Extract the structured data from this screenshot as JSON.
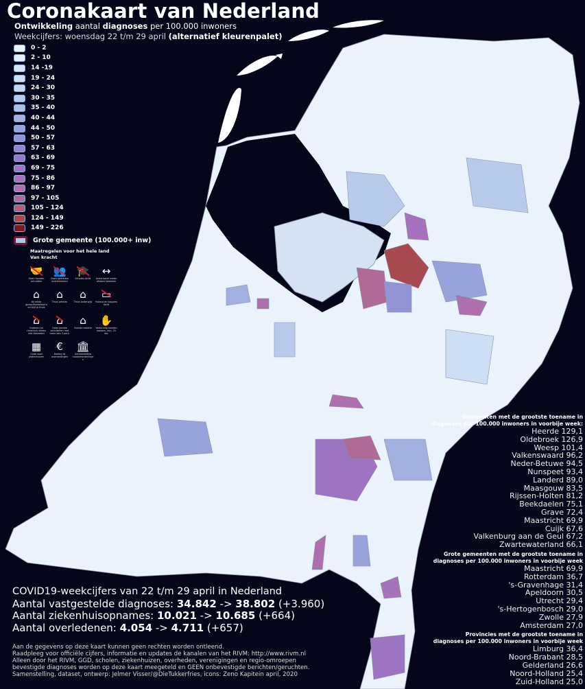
{
  "header": {
    "title": "Coronakaart van Nederland",
    "subtitle_bold1": "Ontwikkeling",
    "subtitle_mid": " aantal ",
    "subtitle_bold2": "diagnoses",
    "subtitle_end": " per 100.000 inwoners",
    "week_text": "Weekcijfers: woensdag 22 t/m 29 april ",
    "palette_note": "(alternatief kleurenpalet)"
  },
  "legend": {
    "items": [
      {
        "label": "0 - 2",
        "color": "#eaf4fc"
      },
      {
        "label": "2 - 10",
        "color": "#e0eefa"
      },
      {
        "label": "14 -19",
        "color": "#d6e6f6"
      },
      {
        "label": "19 - 24",
        "color": "#cddff4"
      },
      {
        "label": "24 - 30",
        "color": "#c4d6f0"
      },
      {
        "label": "30 - 35",
        "color": "#b9cbec"
      },
      {
        "label": "35 - 40",
        "color": "#aebfe6"
      },
      {
        "label": "40 - 44",
        "color": "#a2b0e0"
      },
      {
        "label": "44 - 50",
        "color": "#98a3dc"
      },
      {
        "label": "50 - 57",
        "color": "#9295d4"
      },
      {
        "label": "57 - 63",
        "color": "#8f88cc"
      },
      {
        "label": "63 - 69",
        "color": "#927cc6"
      },
      {
        "label": "69 - 75",
        "color": "#9c74c2"
      },
      {
        "label": "75 - 86",
        "color": "#a672bc"
      },
      {
        "label": "86 - 97",
        "color": "#ae6fae"
      },
      {
        "label": "97 - 105",
        "color": "#b06a98"
      },
      {
        "label": "105 - 124",
        "color": "#b06070"
      },
      {
        "label": "124 - 149",
        "color": "#a84850"
      },
      {
        "label": "149 - 226",
        "color": "#7a1a24"
      }
    ],
    "big_city_label": "Grote gemeente (100.000+ inw)"
  },
  "measures": {
    "title": "Maatregelen voor het hele land",
    "subtitle": "Van kracht",
    "items": [
      {
        "label": "Geen handen schudden",
        "icon": "handshake-icon",
        "glyph": "🤝",
        "crossed": true
      },
      {
        "label": "Geen openbare evenementen",
        "icon": "crowd-icon",
        "glyph": "👥",
        "crossed": true
      },
      {
        "label": "Scholen dicht",
        "icon": "graduation-cap-icon",
        "glyph": "🎓",
        "crossed": true
      },
      {
        "label": "Anderhalve meter afstand bewaren",
        "icon": "distance-icon",
        "glyph": "↔",
        "crossed": false
      },
      {
        "label": "Bij milde gezondheidsklachten blijf je thuis",
        "icon": "sick-home-icon",
        "glyph": "⌂",
        "crossed": false
      },
      {
        "label": "Thuis werken",
        "icon": "work-home-icon",
        "glyph": "⌂",
        "crossed": false
      },
      {
        "label": "Thuis onderwijs",
        "icon": "study-home-icon",
        "glyph": "⌂",
        "crossed": false
      },
      {
        "label": "Horeca en kappers dicht",
        "icon": "shop-icon",
        "glyph": "▭",
        "crossed": true
      },
      {
        "label": "Ouderen en chronisch zieken niet bezoeken",
        "icon": "elderly-icon",
        "glyph": "⌂",
        "crossed": true
      },
      {
        "label": "Geen sociale activiteiten met meer dan 3 pers.",
        "icon": "social-icon",
        "glyph": "⌂",
        "crossed": true
      },
      {
        "label": "Sociale isolatie",
        "icon": "isolation-icon",
        "glyph": "⌂",
        "crossed": false
      },
      {
        "label": "Veelvuldig handen wassen, min. 20 sec",
        "icon": "handwash-icon",
        "glyph": "✋",
        "crossed": false
      },
      {
        "label": "Code rood ziekenhuizen",
        "icon": "hospital-icon",
        "glyph": "▦",
        "crossed": false
      },
      {
        "label": "Boetes bij overtredingen",
        "icon": "fine-icon",
        "glyph": "€",
        "crossed": false
      },
      {
        "label": "Gemeentelijke noodverordeningen",
        "icon": "town-hall-icon",
        "glyph": "🏛",
        "crossed": false
      }
    ]
  },
  "stats": {
    "heading": "COVID19-weekcijfers van 22 t/m 29 april in Nederland",
    "rows": [
      {
        "label": "Aantal vastgestelde diagnoses: ",
        "from": "34.842",
        "arrow": " -> ",
        "to": "38.802",
        "delta": " (+3.960)"
      },
      {
        "label": "Aantal ziekenhuisopnames: ",
        "from": "10.021",
        "arrow": " -> ",
        "to": "10.685",
        "delta": " (+664)"
      },
      {
        "label": "Aantal overledenen: ",
        "from": "4.054",
        "arrow": " -> ",
        "to": "4.711",
        "delta": " (+657)"
      }
    ]
  },
  "disclaimer": [
    "Aan de gegevens op deze kaart kunnen geen rechten worden ontleend.",
    "Raadpleeg voor officiële cijfers, informatie en updates de kanalen van het RIVM: http://www.rivm.nl",
    "Alleen door het RIVM, GGD, scholen, ziekenhuizen, overheden, verenigingen en regio-omroepen",
    "bevestigde diagnoses worden op deze kaart meegeteld en GEEN onbevestigde berichten/geruchten.",
    "Samenstelling, dataset, ontwerp: Jelmer Visser/@DieTukkerfries, icons: Zeno Kapitein april, 2020"
  ],
  "rankings": {
    "municipalities": {
      "heading1": "Gemeenten met de grootste toename in",
      "heading2": "diagnoses per 100.000 inwoners in voorbije week:",
      "items": [
        "Heerde 129,1",
        "Oldebroek 126,9",
        "Weesp 101,4",
        "Valkenswaard 96,2",
        "Neder-Betuwe 94,5",
        "Nunspeet 93,4",
        "Landerd 89,0",
        "Maasgouw 83,5",
        "Rijssen-Holten 81,2",
        "Beekdaelen 75,1",
        "Grave 72,4",
        "Maastricht 69,9",
        "Cuijk 67,6",
        "Valkenburg aan de Geul 67,2",
        "Zwartewaterland 66,1"
      ]
    },
    "big_cities": {
      "heading1": "Grote gemeenten met de grootste toename in",
      "heading2": "diagnoses per 100.000 inwoners in voorbije week",
      "items": [
        "Maastricht 69,9",
        "Rotterdam 36,7",
        "'s-Gravenhage 31,4",
        "Apeldoorn 30,5",
        "Utrecht 29,4",
        "'s-Hertogenbosch 29,0",
        "Zwolle 27,9",
        "Amsterdam 27,0"
      ]
    },
    "provinces": {
      "heading1": "Provincies met de grootste toename in",
      "heading2": "diagnoses per 100.000 inwoners in voorbije week",
      "items": [
        "Limburg 36,4",
        "Noord-Brabant 28,5",
        "Gelderland 26,6",
        "Noord-Holland 25,4",
        "Zuid-Holland 25,0"
      ]
    }
  },
  "colors": {
    "background": "#06061a",
    "land_base": "#dfeaf8",
    "border": "#8890a8"
  }
}
